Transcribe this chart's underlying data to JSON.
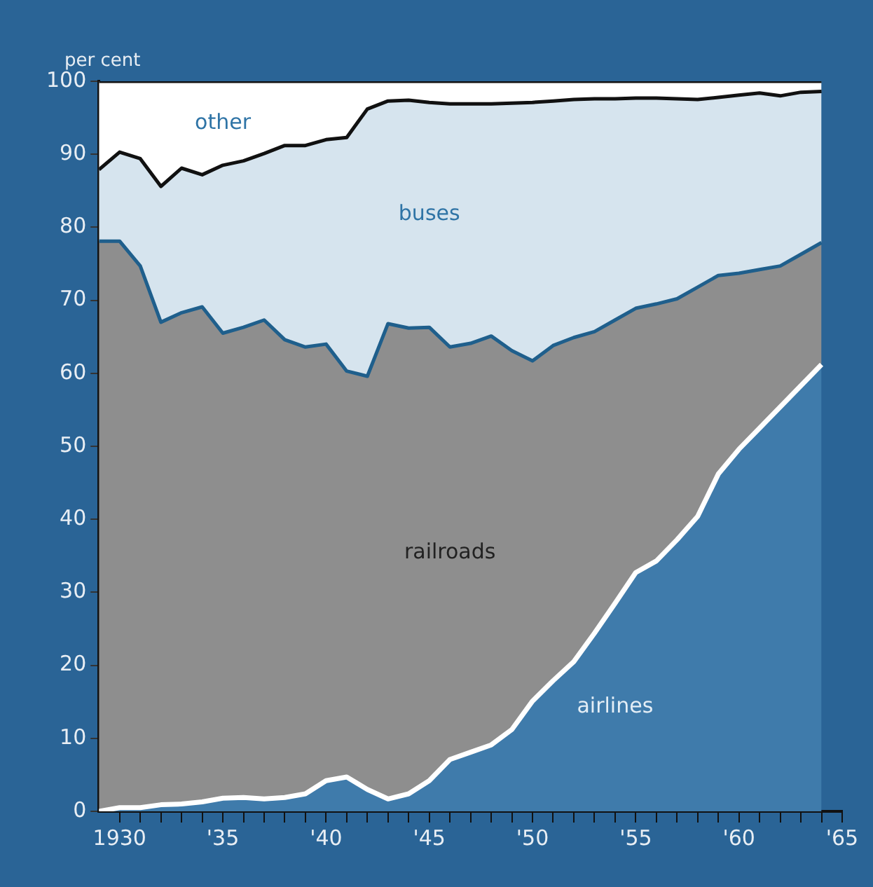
{
  "chart_data": {
    "type": "area",
    "ylabel": "per cent",
    "stacked": true,
    "legend": false,
    "grid": false,
    "x": [
      1929,
      1930,
      1931,
      1932,
      1933,
      1934,
      1935,
      1936,
      1937,
      1938,
      1939,
      1940,
      1941,
      1942,
      1943,
      1944,
      1945,
      1946,
      1947,
      1948,
      1949,
      1950,
      1951,
      1952,
      1953,
      1954,
      1955,
      1956,
      1957,
      1958,
      1959,
      1960,
      1961,
      1962,
      1963,
      1964
    ],
    "series": [
      {
        "name": "airlines",
        "color": "#3f7bab",
        "values": [
          0,
          0.5,
          0.5,
          0.9,
          1.0,
          1.3,
          1.8,
          1.9,
          1.7,
          1.9,
          2.4,
          4.2,
          4.7,
          3.0,
          1.7,
          2.4,
          4.2,
          7.1,
          8.1,
          9.1,
          11.2,
          15.1,
          17.9,
          20.5,
          24.4,
          28.5,
          32.7,
          34.3,
          37.2,
          40.4,
          46.2,
          49.6,
          52.5,
          55.4,
          58.3,
          61.2
        ]
      },
      {
        "name": "railroads",
        "color": "#8e8e8e",
        "values": [
          78.1,
          77.6,
          74.2,
          66.1,
          67.3,
          67.8,
          63.7,
          64.4,
          65.6,
          62.7,
          61.2,
          59.8,
          55.6,
          56.6,
          65.1,
          63.8,
          62.1,
          56.5,
          56.0,
          56.0,
          51.9,
          46.6,
          45.9,
          44.4,
          41.3,
          38.8,
          36.2,
          35.2,
          33.0,
          31.4,
          27.2,
          24.1,
          21.7,
          19.3,
          18.0,
          16.7
        ]
      },
      {
        "name": "buses",
        "color": "#d6e4ee",
        "values": [
          9.8,
          12.2,
          14.7,
          18.6,
          19.8,
          18.1,
          23.0,
          22.8,
          22.8,
          26.6,
          27.6,
          28.0,
          32.0,
          36.6,
          30.5,
          31.2,
          30.8,
          33.3,
          32.8,
          31.8,
          33.9,
          35.4,
          33.5,
          32.6,
          31.9,
          30.3,
          28.8,
          28.2,
          27.4,
          25.7,
          24.4,
          24.4,
          24.2,
          23.3,
          22.2,
          20.7
        ]
      },
      {
        "name": "other",
        "color": "#ffffff",
        "values": [
          12.1,
          9.7,
          10.6,
          14.4,
          11.9,
          12.8,
          11.5,
          10.9,
          9.9,
          8.8,
          8.8,
          8.0,
          7.7,
          3.8,
          2.7,
          2.6,
          2.9,
          3.1,
          3.1,
          3.1,
          3.0,
          2.9,
          2.7,
          2.5,
          2.4,
          2.4,
          2.3,
          2.3,
          2.4,
          2.5,
          2.2,
          1.9,
          1.6,
          2.0,
          1.5,
          1.4
        ]
      }
    ],
    "xlim": [
      1929,
      1965
    ],
    "xticks": [
      {
        "value": 1930,
        "label": "1930"
      },
      {
        "value": 1931,
        "label": null
      },
      {
        "value": 1932,
        "label": null
      },
      {
        "value": 1933,
        "label": null
      },
      {
        "value": 1934,
        "label": null
      },
      {
        "value": 1935,
        "label": "'35"
      },
      {
        "value": 1936,
        "label": null
      },
      {
        "value": 1937,
        "label": null
      },
      {
        "value": 1938,
        "label": null
      },
      {
        "value": 1939,
        "label": null
      },
      {
        "value": 1940,
        "label": "'40"
      },
      {
        "value": 1941,
        "label": null
      },
      {
        "value": 1942,
        "label": null
      },
      {
        "value": 1943,
        "label": null
      },
      {
        "value": 1944,
        "label": null
      },
      {
        "value": 1945,
        "label": "'45"
      },
      {
        "value": 1946,
        "label": null
      },
      {
        "value": 1947,
        "label": null
      },
      {
        "value": 1948,
        "label": null
      },
      {
        "value": 1949,
        "label": null
      },
      {
        "value": 1950,
        "label": "'50"
      },
      {
        "value": 1951,
        "label": null
      },
      {
        "value": 1952,
        "label": null
      },
      {
        "value": 1953,
        "label": null
      },
      {
        "value": 1954,
        "label": null
      },
      {
        "value": 1955,
        "label": "'55"
      },
      {
        "value": 1956,
        "label": null
      },
      {
        "value": 1957,
        "label": null
      },
      {
        "value": 1958,
        "label": null
      },
      {
        "value": 1959,
        "label": null
      },
      {
        "value": 1960,
        "label": "'60"
      },
      {
        "value": 1961,
        "label": null
      },
      {
        "value": 1962,
        "label": null
      },
      {
        "value": 1963,
        "label": null
      },
      {
        "value": 1964,
        "label": null
      },
      {
        "value": 1965,
        "label": "'65"
      }
    ],
    "ylim": [
      0,
      100
    ],
    "yticks": [
      0,
      10,
      20,
      30,
      40,
      50,
      60,
      70,
      80,
      90,
      100
    ]
  }
}
